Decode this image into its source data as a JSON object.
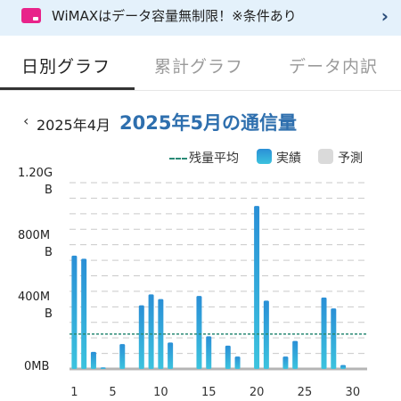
{
  "banner": {
    "icon": "router-icon",
    "text": "WiMAXはデータ容量無制限！※条件あり",
    "chevron": "›"
  },
  "tabs": [
    {
      "label": "日別グラフ",
      "active": true
    },
    {
      "label": "累計グラフ",
      "active": false
    },
    {
      "label": "データ内訳",
      "active": false
    }
  ],
  "month_nav": {
    "prev_arrow": "‹",
    "prev_label": "2025年4月",
    "current_label": "2025年5月の通信量"
  },
  "legend": {
    "average_label": "残量平均",
    "actual_label": "実績",
    "forecast_label": "予測"
  },
  "colors": {
    "accent": "#2e6fae",
    "bar_top": "#2a8fd6",
    "bar_bottom": "#3cc3de",
    "average_line": "#2a8a76",
    "forecast": "#dadada"
  },
  "chart_data": {
    "type": "bar",
    "y_ticks": [
      {
        "value": 1200,
        "label": "1.20G\nB"
      },
      {
        "value": 800,
        "label": "800M\nB"
      },
      {
        "value": 400,
        "label": "400M\nB"
      },
      {
        "value": 0,
        "label": "0MB"
      }
    ],
    "ylim": [
      0,
      1200
    ],
    "grid_values": [
      0,
      100,
      200,
      300,
      400,
      500,
      600,
      700,
      800,
      900,
      1000,
      1100,
      1200
    ],
    "grid": true,
    "x_ticks": [
      "1",
      "5",
      "10",
      "15",
      "20",
      "25",
      "30"
    ],
    "x_tick_days": [
      1,
      5,
      10,
      15,
      20,
      25,
      30
    ],
    "days": [
      1,
      2,
      3,
      4,
      5,
      6,
      7,
      8,
      9,
      10,
      11,
      12,
      13,
      14,
      15,
      16,
      17,
      18,
      19,
      20,
      21,
      22,
      23,
      24,
      25,
      26,
      27,
      28,
      29,
      30,
      31
    ],
    "values": [
      730,
      710,
      110,
      10,
      0,
      160,
      0,
      410,
      480,
      450,
      170,
      0,
      0,
      470,
      210,
      0,
      150,
      80,
      0,
      1050,
      440,
      0,
      80,
      180,
      0,
      0,
      460,
      390,
      25,
      0,
      0
    ],
    "average": 225
  }
}
